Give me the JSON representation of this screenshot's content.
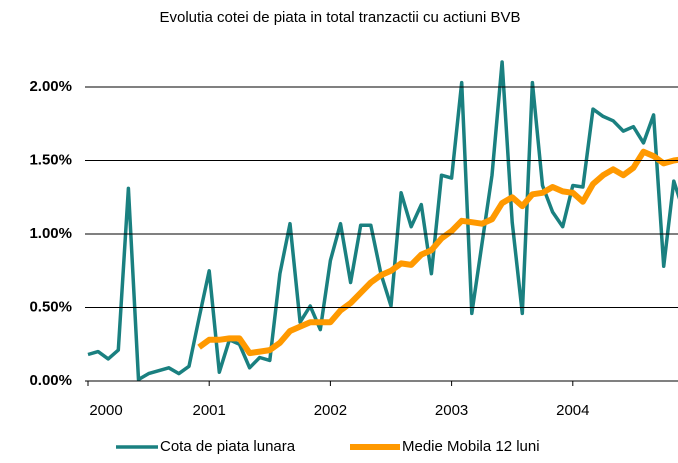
{
  "chart_data": {
    "type": "line",
    "title": "Evolutia cotei de piata in total tranzactii cu actiuni BVB",
    "categories": [
      "2000",
      null,
      null,
      null,
      null,
      null,
      null,
      null,
      null,
      null,
      null,
      null,
      "2001",
      null,
      null,
      null,
      null,
      null,
      null,
      null,
      null,
      null,
      null,
      null,
      "2002",
      null,
      null,
      null,
      null,
      null,
      null,
      null,
      null,
      null,
      null,
      null,
      "2003",
      null,
      null,
      null,
      null,
      null,
      null,
      null,
      null,
      null,
      null,
      null,
      "2004",
      null,
      null,
      null,
      null,
      null,
      null,
      null,
      null,
      null,
      null,
      null
    ],
    "series": [
      {
        "name": "Cota de piata lunara",
        "color": "#1a8080",
        "values": [
          0.18,
          0.2,
          0.15,
          0.21,
          1.31,
          0.01,
          0.05,
          0.07,
          0.09,
          0.05,
          0.1,
          0.43,
          0.75,
          0.06,
          0.28,
          0.25,
          0.09,
          0.16,
          0.14,
          0.73,
          1.07,
          0.4,
          0.51,
          0.35,
          0.82,
          1.07,
          0.67,
          1.06,
          1.06,
          0.73,
          0.51,
          1.28,
          1.05,
          1.2,
          0.73,
          1.4,
          1.38,
          2.03,
          0.46,
          0.93,
          1.4,
          2.17,
          1.08,
          0.46,
          2.03,
          1.33,
          1.15,
          1.05,
          1.33,
          1.32,
          1.85,
          1.8,
          1.77,
          1.7,
          1.73,
          1.62,
          1.81,
          0.78,
          1.36,
          1.15
        ]
      },
      {
        "name": "Medie Mobila 12 luni",
        "color": "#ff9900",
        "values": [
          null,
          null,
          null,
          null,
          null,
          null,
          null,
          null,
          null,
          null,
          null,
          0.23,
          0.28,
          0.28,
          0.29,
          0.29,
          0.19,
          0.2,
          0.21,
          0.26,
          0.34,
          0.37,
          0.4,
          0.4,
          0.4,
          0.48,
          0.53,
          0.6,
          0.67,
          0.72,
          0.75,
          0.8,
          0.79,
          0.86,
          0.89,
          0.97,
          1.02,
          1.09,
          1.08,
          1.07,
          1.1,
          1.21,
          1.25,
          1.19,
          1.27,
          1.28,
          1.32,
          1.29,
          1.28,
          1.22,
          1.34,
          1.4,
          1.44,
          1.4,
          1.45,
          1.56,
          1.53,
          1.48,
          1.5,
          1.51
        ]
      }
    ],
    "ylim": [
      0,
      2.2
    ],
    "yticks": [
      {
        "value": 0,
        "label": "0.00%"
      },
      {
        "value": 0.5,
        "label": "0.50%"
      },
      {
        "value": 1,
        "label": "1.00%"
      },
      {
        "value": 1.5,
        "label": "1.50%"
      },
      {
        "value": 2,
        "label": "2.00%"
      }
    ],
    "grid": true,
    "legend": "bottom"
  }
}
